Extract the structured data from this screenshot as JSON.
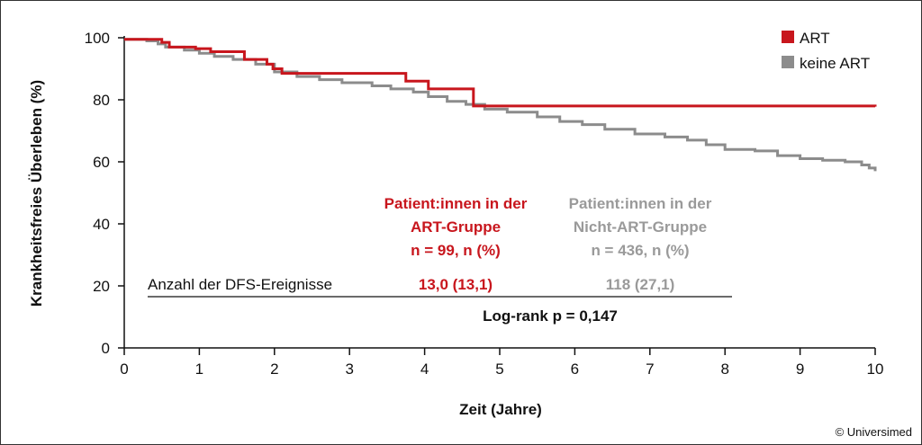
{
  "chart_data": {
    "type": "line",
    "xlabel": "Zeit (Jahre)",
    "ylabel": "Krankheitsfreies Überleben (%)",
    "xlim": [
      0,
      10
    ],
    "ylim": [
      0,
      100
    ],
    "xticks": [
      "0",
      "1",
      "2",
      "3",
      "4",
      "5",
      "6",
      "7",
      "8",
      "9",
      "10"
    ],
    "yticks": [
      "0",
      "20",
      "40",
      "60",
      "80",
      "100"
    ],
    "grid": false,
    "legend_position": "top-right",
    "series": [
      {
        "name": "ART",
        "color": "#c8161d",
        "step": true,
        "x": [
          0,
          0.45,
          0.5,
          0.6,
          0.95,
          1.15,
          1.6,
          1.9,
          1.98,
          2.1,
          2.5,
          3.5,
          3.75,
          4.05,
          4.55,
          4.65,
          10
        ],
        "y": [
          99.5,
          99.5,
          98.5,
          97,
          96.5,
          95.5,
          93,
          91.5,
          90,
          88.5,
          88.5,
          88.5,
          86,
          83.5,
          83.5,
          78,
          77.8
        ]
      },
      {
        "name": "keine ART",
        "color": "#8c8c8c",
        "step": true,
        "x": [
          0,
          0.3,
          0.45,
          0.55,
          0.8,
          1.0,
          1.2,
          1.45,
          1.75,
          2.0,
          2.3,
          2.6,
          2.9,
          3.3,
          3.55,
          3.85,
          4.05,
          4.3,
          4.55,
          4.8,
          5.1,
          5.5,
          5.8,
          6.1,
          6.4,
          6.8,
          7.2,
          7.5,
          7.75,
          8.0,
          8.4,
          8.7,
          9.0,
          9.3,
          9.6,
          9.82,
          9.92,
          10
        ],
        "y": [
          99.5,
          99,
          98,
          97,
          96,
          95,
          94,
          93,
          91.5,
          89,
          87.5,
          86.5,
          85.5,
          84.5,
          83.5,
          82.5,
          81,
          79.5,
          78.5,
          77,
          76,
          74.5,
          73,
          72,
          70.5,
          69,
          68,
          67,
          65.5,
          64,
          63.5,
          62,
          61,
          60.5,
          60,
          59,
          58,
          57
        ]
      }
    ],
    "annotations": {
      "group_headers": {
        "art": [
          "Patient:innen in der",
          "ART-Gruppe",
          "n = 99, n (%)"
        ],
        "none": [
          "Patient:innen in der",
          "Nicht-ART-Gruppe",
          "n = 436, n (%)"
        ]
      },
      "row_label": "Anzahl der DFS-Ereignisse",
      "art_value": "13,0 (13,1)",
      "none_value": "118 (27,1)",
      "logrank": "Log-rank p = 0,147"
    }
  },
  "copyright": "© Universimed"
}
